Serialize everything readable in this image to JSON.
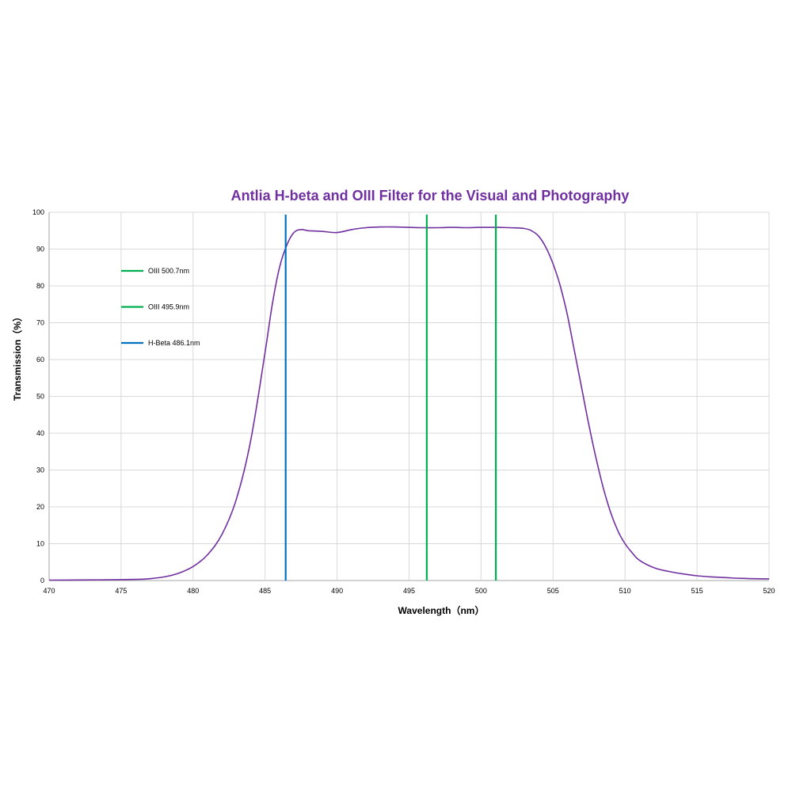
{
  "chart_data": {
    "type": "line",
    "title": "Antlia H-beta and OIII Filter for the Visual and Photography",
    "xlabel": "Wavelength（nm）",
    "ylabel": "Transmission（%）",
    "xlim": [
      470,
      520
    ],
    "ylim": [
      0,
      100
    ],
    "xticks": [
      "470",
      "475",
      "480",
      "485",
      "490",
      "495",
      "500",
      "505",
      "510",
      "515",
      "520"
    ],
    "yticks": [
      "0",
      "10",
      "20",
      "30",
      "40",
      "50",
      "60",
      "70",
      "80",
      "90",
      "100"
    ],
    "grid": true,
    "legend_position": "upper-left inside plot",
    "transmission_curve": {
      "color": "#7030a0",
      "x": [
        470,
        472,
        474,
        476,
        477,
        478,
        479,
        480,
        481,
        482,
        483,
        484,
        485,
        485.5,
        486,
        486.5,
        487,
        487.5,
        488,
        489,
        490,
        491,
        492,
        493,
        494,
        495,
        496,
        497,
        498,
        499,
        500,
        501,
        502,
        503,
        503.5,
        504,
        504.5,
        505,
        505.5,
        506,
        506.5,
        507,
        507.5,
        508,
        508.5,
        509,
        509.5,
        510,
        510.5,
        511,
        512,
        513,
        514,
        515,
        516,
        517,
        518,
        519,
        520
      ],
      "y": [
        0.1,
        0.15,
        0.2,
        0.3,
        0.5,
        1.0,
        2.0,
        3.8,
        7.0,
        12.5,
        22,
        38,
        62,
        75,
        85,
        91,
        94.5,
        95.3,
        95.0,
        94.8,
        94.5,
        95.3,
        95.8,
        96.0,
        96.0,
        95.9,
        95.8,
        95.8,
        95.9,
        95.8,
        95.9,
        95.9,
        95.8,
        95.6,
        95.0,
        93.5,
        90.5,
        86,
        80,
        72,
        62,
        52,
        42,
        33,
        25,
        18.5,
        13.5,
        10,
        7.5,
        5.5,
        3.5,
        2.5,
        1.8,
        1.3,
        1.0,
        0.8,
        0.6,
        0.5,
        0.45
      ]
    },
    "series": [
      {
        "name": "OIII 500.7nm",
        "x": 500.7,
        "color": "#00b050"
      },
      {
        "name": "OIII 495.9nm",
        "x": 495.9,
        "color": "#00b050"
      },
      {
        "name": "H-Beta 486.1nm",
        "x": 486.1,
        "color": "#0070c0"
      }
    ]
  }
}
